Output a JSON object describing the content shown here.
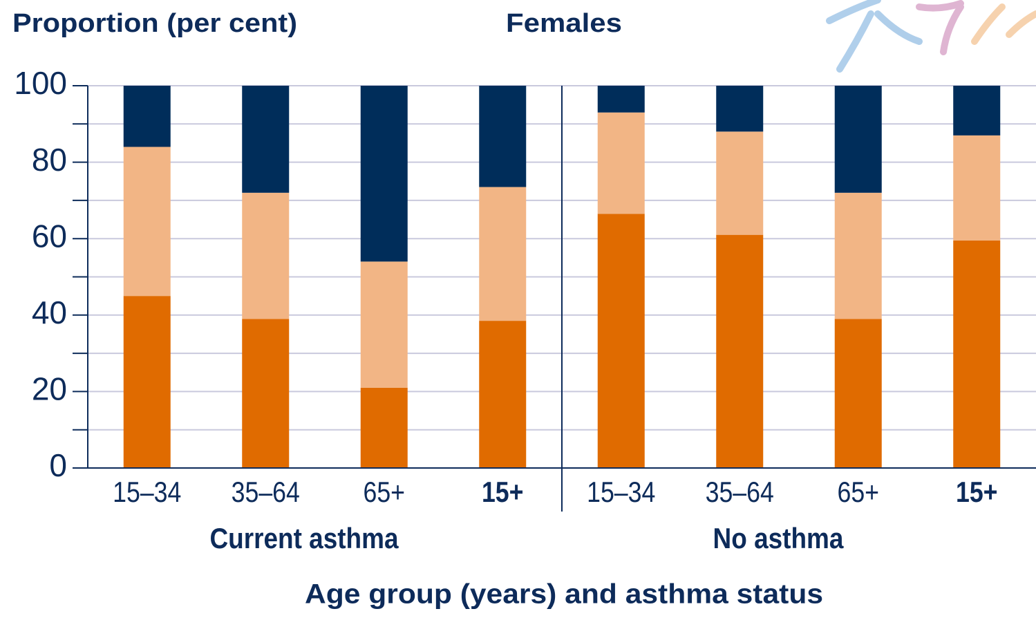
{
  "chart_data": {
    "type": "stacked_bar",
    "title": "Females",
    "y_label": "Proportion (per cent)",
    "x_label": "Age group (years) and asthma status",
    "groups": [
      "Current asthma",
      "No asthma"
    ],
    "categories": [
      "15–34",
      "35–64",
      "65+",
      "15+",
      "15–34",
      "35–64",
      "65+",
      "15+"
    ],
    "bold_last_in_group": true,
    "series": [
      {
        "color": "#e06b00",
        "values": [
          45,
          39,
          21,
          38.5,
          66.5,
          61,
          39,
          59.5
        ]
      },
      {
        "color": "#f2b585",
        "values": [
          39,
          33,
          33,
          35,
          26.5,
          27,
          33,
          27.5
        ]
      },
      {
        "color": "#002d5a",
        "values": [
          16,
          28,
          46,
          26.5,
          7,
          12,
          28,
          13
        ]
      }
    ],
    "ylim": [
      0,
      100
    ],
    "yticks": [
      0,
      20,
      40,
      60,
      80,
      100
    ],
    "minor_yticks": [
      10,
      30,
      50,
      70,
      90
    ],
    "grid": true
  }
}
